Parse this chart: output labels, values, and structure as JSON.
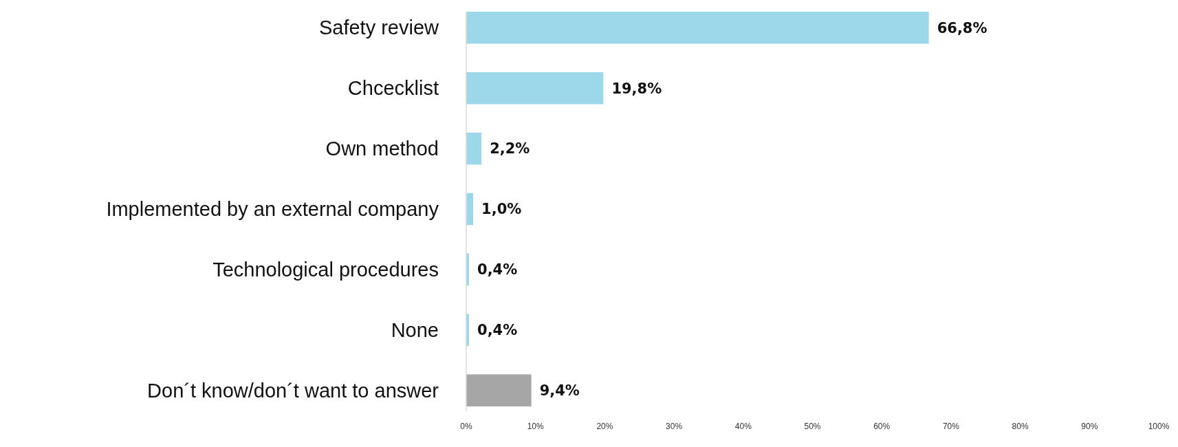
{
  "chart_data": {
    "type": "bar",
    "orientation": "horizontal",
    "categories": [
      "Safety review",
      "Chcecklist",
      "Own method",
      "Implemented by an external company",
      "Technological procedures",
      "None",
      "Don´t know/don´t want to answer"
    ],
    "values": [
      66.8,
      19.8,
      2.2,
      1.0,
      0.4,
      0.4,
      9.4
    ],
    "colors": [
      "#9cd8e9",
      "#9cd8e9",
      "#9cd8e9",
      "#9cd8e9",
      "#9cd8e9",
      "#9cd8e9",
      "#a6a6a6"
    ],
    "value_labels": [
      "66,8%",
      "19,8%",
      "2,2%",
      "1,0%",
      "0,4%",
      "0,4%",
      "9,4%"
    ],
    "xlim": [
      0,
      100
    ],
    "xticks": [
      {
        "value": 0,
        "label": "0%"
      },
      {
        "value": 10,
        "label": "10%"
      },
      {
        "value": 20,
        "label": "20%"
      },
      {
        "value": 30,
        "label": "30%"
      },
      {
        "value": 40,
        "label": "40%"
      },
      {
        "value": 50,
        "label": "50%"
      },
      {
        "value": 60,
        "label": "60%"
      },
      {
        "value": 70,
        "label": "70%"
      },
      {
        "value": 80,
        "label": "80%"
      },
      {
        "value": 90,
        "label": "90%"
      },
      {
        "value": 100,
        "label": "100%"
      }
    ],
    "grid": false
  }
}
